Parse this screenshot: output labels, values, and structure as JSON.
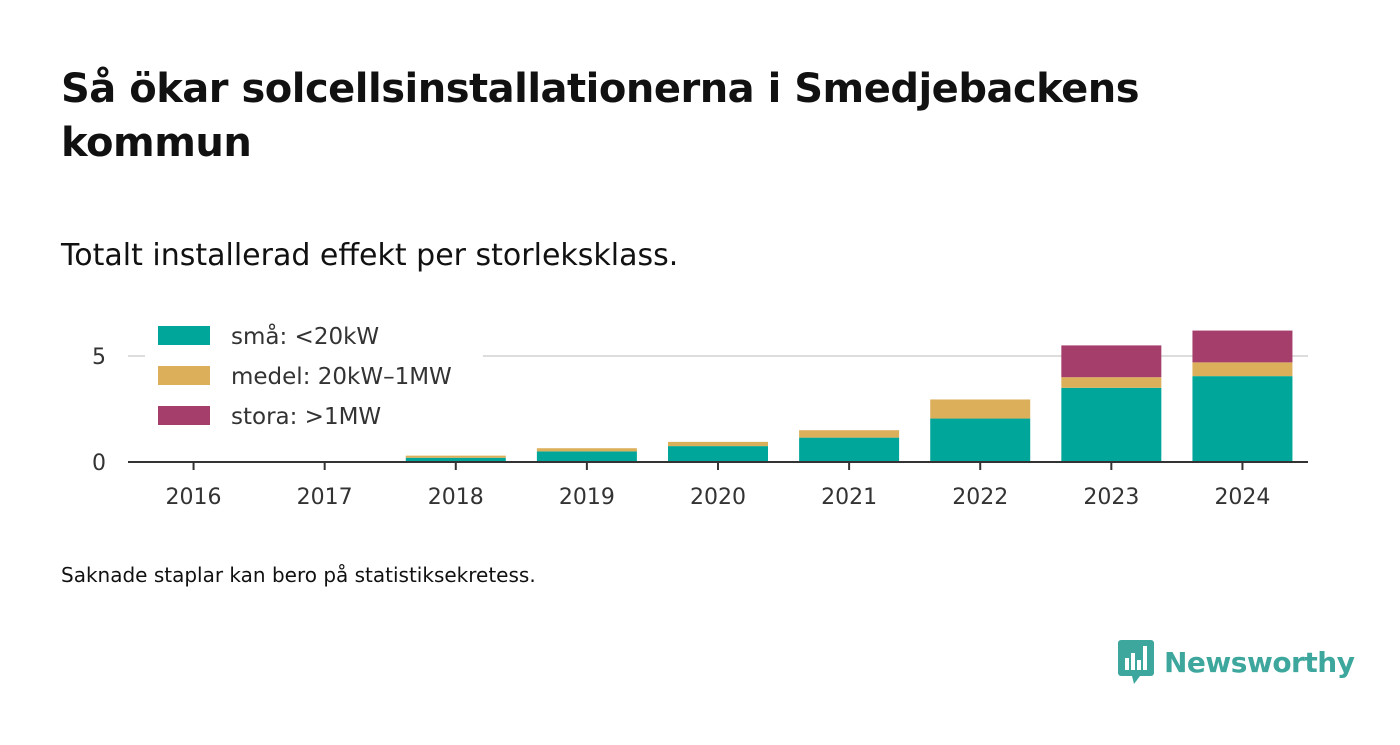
{
  "title": "Så ökar solcellsinstallationerna i Smedjebackens kommun",
  "subtitle": "Totalt installerad effekt per storleksklass.",
  "note": "Saknade staplar kan bero på statistiksekretess.",
  "brand": {
    "name": "Newsworthy",
    "color": "#3ea79d"
  },
  "chart_data": {
    "type": "bar",
    "stacked": true,
    "categories": [
      "2016",
      "2017",
      "2018",
      "2019",
      "2020",
      "2021",
      "2022",
      "2023",
      "2024"
    ],
    "series": [
      {
        "name": "små: <20kW",
        "color": "#00a699",
        "values": [
          0,
          0,
          0.2,
          0.5,
          0.75,
          1.15,
          2.05,
          3.5,
          4.05
        ]
      },
      {
        "name": "medel: 20kW–1MW",
        "color": "#dcaf5a",
        "values": [
          0,
          0,
          0.1,
          0.15,
          0.2,
          0.35,
          0.9,
          0.5,
          0.65
        ]
      },
      {
        "name": "stora: >1MW",
        "color": "#a53e6b",
        "values": [
          0,
          0,
          0,
          0,
          0,
          0,
          0,
          1.5,
          1.5
        ]
      }
    ],
    "yticks": [
      0,
      5
    ],
    "ylim": [
      0,
      6.6
    ],
    "grid": true,
    "legend": "top-left",
    "xlabel": "",
    "ylabel": ""
  }
}
